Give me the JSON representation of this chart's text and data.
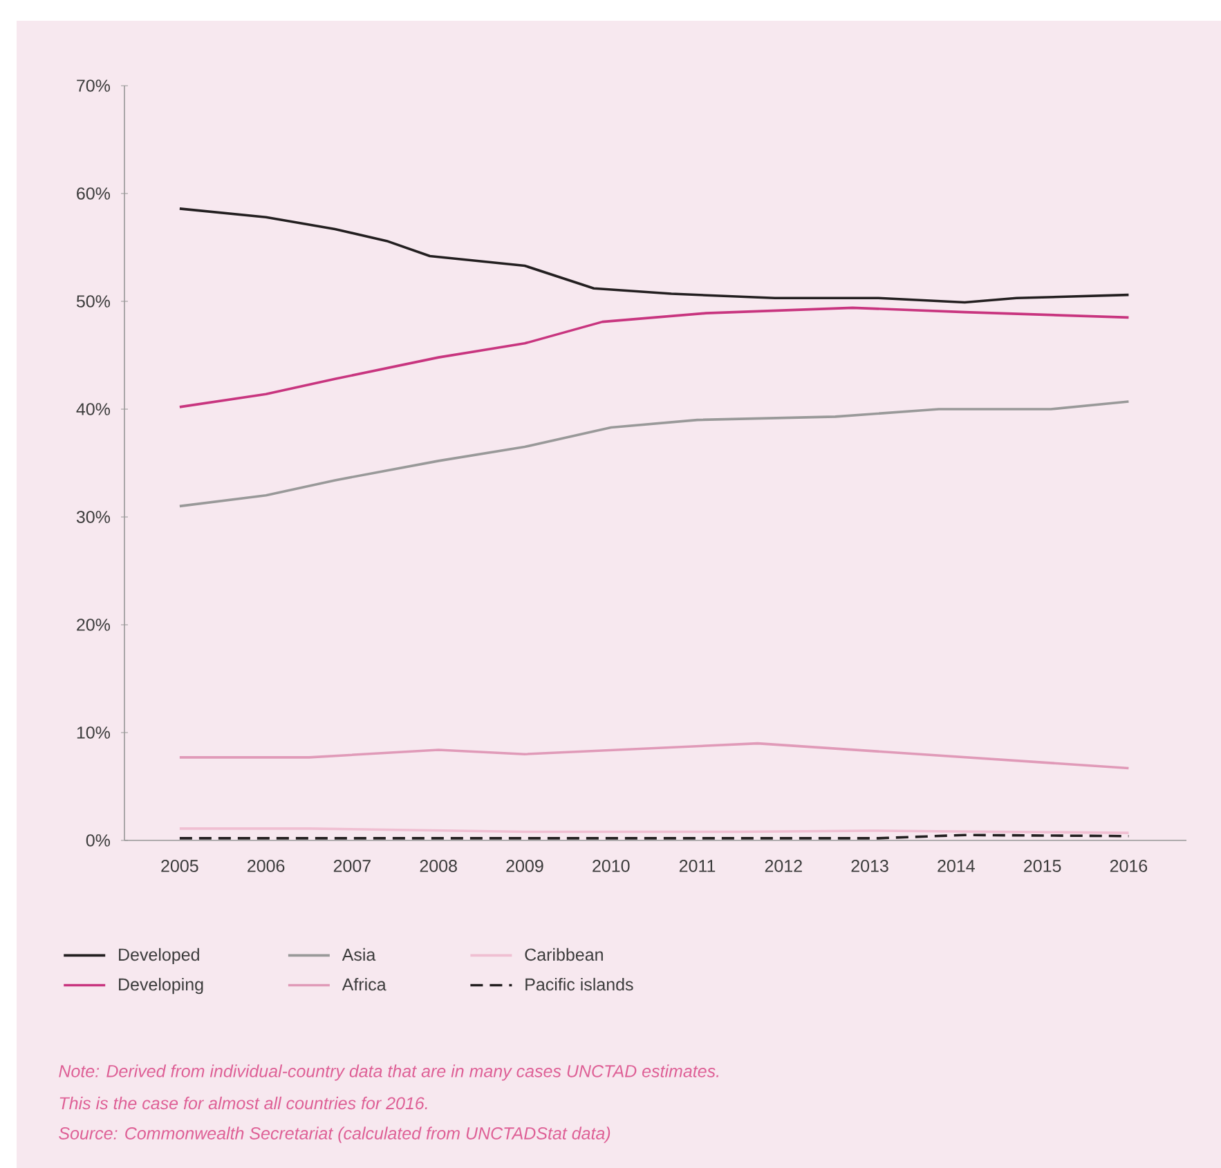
{
  "chart_data": {
    "type": "line",
    "xlim": [
      2004.36,
      2016.67
    ],
    "ylim": [
      0,
      70
    ],
    "xticks": [
      2005,
      2006,
      2007,
      2008,
      2009,
      2010,
      2011,
      2012,
      2013,
      2014,
      2015,
      2016
    ],
    "yticks": [
      {
        "value": 0,
        "label": "0%"
      },
      {
        "value": 10,
        "label": "10%"
      },
      {
        "value": 20,
        "label": "20%"
      },
      {
        "value": 30,
        "label": "30%"
      },
      {
        "value": 40,
        "label": "40%"
      },
      {
        "value": 50,
        "label": "50%"
      },
      {
        "value": 60,
        "label": "60%"
      },
      {
        "value": 70,
        "label": "70%"
      }
    ],
    "legend": "bottom",
    "marker": "none",
    "line_style": "solid",
    "series": [
      {
        "name": "Developed",
        "color": "#231f20",
        "x": [
          2005,
          2006,
          2006.8,
          2007.4,
          2007.9,
          2009.0,
          2009.8,
          2010.7,
          2011.9,
          2013.1,
          2014.1,
          2014.7,
          2016
        ],
        "values": [
          58.6,
          57.8,
          56.7,
          55.6,
          54.2,
          53.3,
          51.2,
          50.7,
          50.3,
          50.3,
          49.9,
          50.3,
          50.6
        ]
      },
      {
        "name": "Asia",
        "color": "#999999",
        "x": [
          2005,
          2006,
          2006.8,
          2008.0,
          2009.0,
          2010.0,
          2011.0,
          2012.6,
          2013.8,
          2015.1,
          2016
        ],
        "values": [
          31.0,
          32.0,
          33.4,
          35.2,
          36.5,
          38.3,
          39.0,
          39.3,
          40.0,
          40.0,
          40.7
        ]
      },
      {
        "name": "Caribbean",
        "color": "#f0bfd2",
        "x": [
          2005,
          2006.5,
          2009.0,
          2011.5,
          2013.0,
          2016
        ],
        "values": [
          1.1,
          1.1,
          0.8,
          0.8,
          0.9,
          0.7
        ]
      },
      {
        "name": "Developing",
        "color": "#c8357f",
        "x": [
          2005,
          2006,
          2006.8,
          2008.0,
          2009.0,
          2009.9,
          2011.1,
          2012.8,
          2014.1,
          2016
        ],
        "values": [
          40.2,
          41.4,
          42.8,
          44.8,
          46.1,
          48.1,
          48.9,
          49.4,
          49.0,
          48.5
        ]
      },
      {
        "name": "Africa",
        "color": "#e09ab8",
        "x": [
          2005,
          2006.5,
          2008.0,
          2009.0,
          2011.7,
          2016
        ],
        "values": [
          7.7,
          7.7,
          8.4,
          8.0,
          9.0,
          6.7
        ]
      },
      {
        "name": "Pacific islands",
        "color": "#231f20",
        "line_style": "dashed",
        "x": [
          2005,
          2013.1,
          2014.1,
          2016
        ],
        "values": [
          0.2,
          0.2,
          0.5,
          0.4
        ]
      }
    ],
    "annotations": [
      "Note: Derived from individual-country data that are in many cases UNCTAD estimates.",
      "This is the case for almost all countries for 2016.",
      "Source: Commonwealth Secretariat (calculated from UNCTADStat data)"
    ]
  }
}
